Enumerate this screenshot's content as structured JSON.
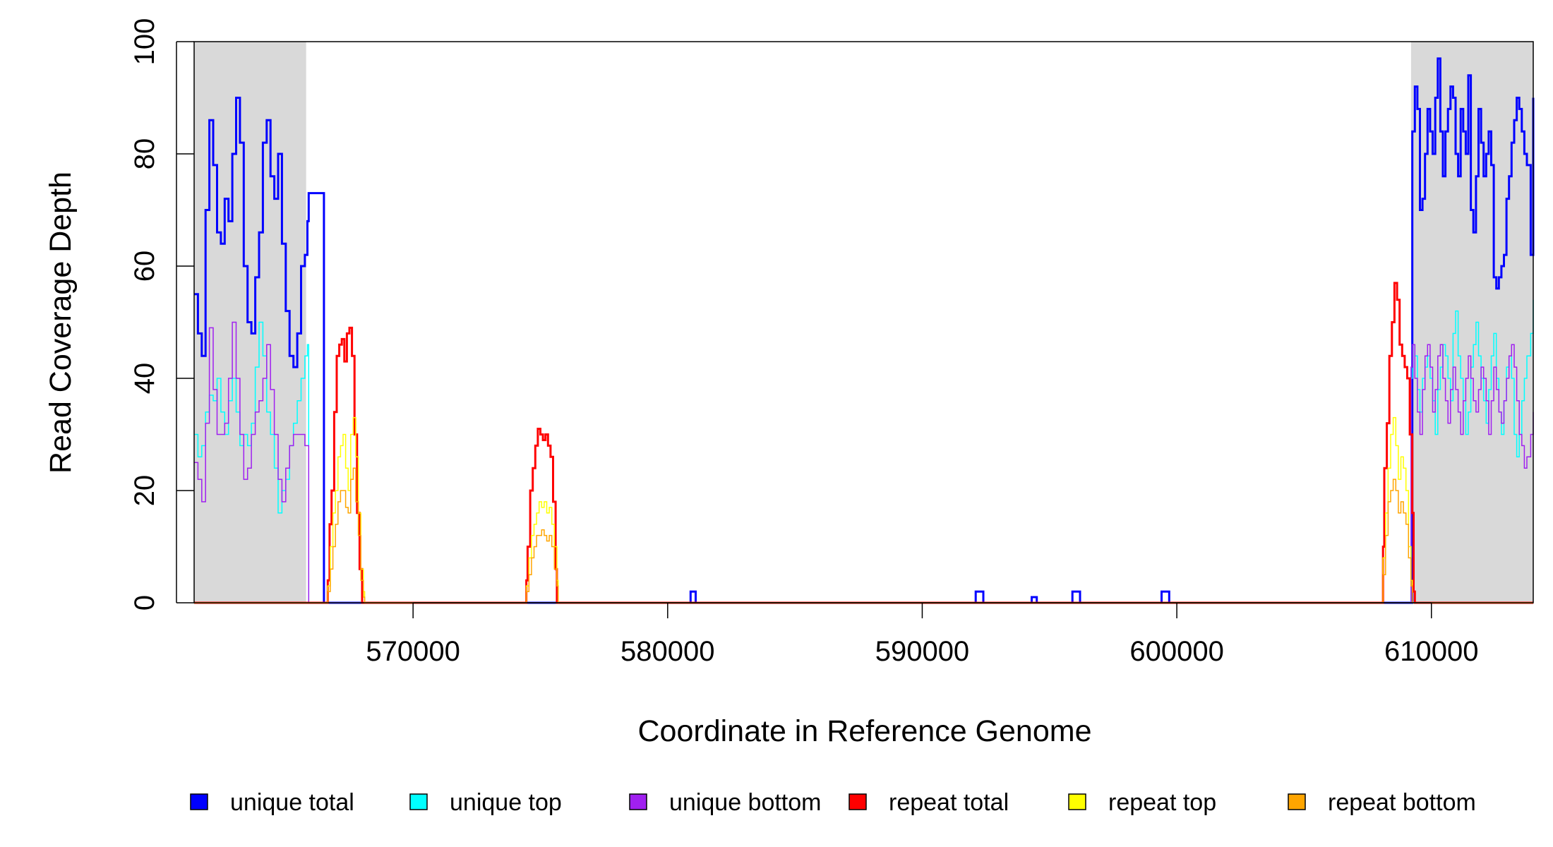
{
  "chart_data": {
    "type": "line",
    "title": "",
    "xlabel": "Coordinate in Reference Genome",
    "ylabel": "Read Coverage Depth",
    "xlim": [
      561400,
      614000
    ],
    "ylim": [
      0,
      100
    ],
    "x_ticks": [
      570000,
      580000,
      590000,
      600000,
      610000
    ],
    "x_tick_labels": [
      "570000",
      "580000",
      "590000",
      "600000",
      "610000"
    ],
    "y_ticks": [
      0,
      20,
      40,
      60,
      80,
      100
    ],
    "y_tick_labels": [
      "0",
      "20",
      "40",
      "60",
      "80",
      "100"
    ],
    "grid": false,
    "legend_position": "bottom",
    "shaded_regions": [
      {
        "x": [
          561400,
          565800
        ],
        "color": "#d9d9d9"
      },
      {
        "x": [
          609200,
          614000
        ],
        "color": "#d9d9d9"
      }
    ],
    "series": [
      {
        "name": "unique total",
        "color": "#0000ff",
        "width": 3,
        "x": [
          561400,
          561550,
          561700,
          561850,
          562000,
          562150,
          562300,
          562450,
          562600,
          562750,
          562900,
          563050,
          563200,
          563350,
          563500,
          563650,
          563800,
          563950,
          564100,
          564250,
          564400,
          564550,
          564700,
          564850,
          565000,
          565150,
          565300,
          565450,
          565600,
          565750,
          565850,
          565900,
          566500,
          567000,
          568000,
          570000,
          575000,
          580000,
          580700,
          580900,
          581000,
          581100,
          585000,
          590000,
          592000,
          592100,
          592300,
          592400,
          593000,
          594200,
          594300,
          594400,
          594500,
          595500,
          595800,
          595900,
          596100,
          596200,
          599000,
          599300,
          599400,
          599600,
          599700,
          605000,
          609000,
          609200,
          609250,
          609350,
          609450,
          609550,
          609650,
          609750,
          609850,
          609950,
          610050,
          610150,
          610250,
          610350,
          610450,
          610550,
          610650,
          610750,
          610850,
          610950,
          611050,
          611150,
          611250,
          611350,
          611450,
          611550,
          611650,
          611750,
          611850,
          611950,
          612050,
          612150,
          612250,
          612350,
          612450,
          612550,
          612650,
          612750,
          612850,
          612950,
          613050,
          613150,
          613250,
          613350,
          613450,
          613550,
          613650,
          613750,
          613900,
          614000
        ],
        "y": [
          55,
          48,
          44,
          70,
          86,
          78,
          66,
          64,
          72,
          68,
          80,
          90,
          82,
          60,
          50,
          48,
          58,
          66,
          82,
          86,
          76,
          72,
          80,
          64,
          52,
          44,
          42,
          48,
          60,
          62,
          68,
          73,
          0,
          0,
          0,
          0,
          0,
          0,
          0,
          2,
          2,
          0,
          0,
          0,
          0,
          2,
          2,
          0,
          0,
          0,
          1,
          1,
          0,
          0,
          0,
          2,
          2,
          0,
          0,
          0,
          2,
          2,
          0,
          0,
          0,
          0,
          84,
          92,
          88,
          70,
          72,
          80,
          88,
          84,
          80,
          90,
          97,
          84,
          76,
          84,
          88,
          92,
          90,
          80,
          76,
          88,
          84,
          80,
          94,
          70,
          66,
          76,
          88,
          82,
          76,
          80,
          84,
          78,
          58,
          56,
          58,
          60,
          62,
          72,
          76,
          82,
          86,
          90,
          88,
          84,
          80,
          78,
          62,
          90
        ]
      },
      {
        "name": "unique top",
        "color": "#00ffff",
        "width": 1.5,
        "x": [
          561400,
          561550,
          561700,
          561850,
          562000,
          562150,
          562300,
          562450,
          562600,
          562750,
          562900,
          563050,
          563200,
          563350,
          563500,
          563650,
          563800,
          563950,
          564100,
          564250,
          564400,
          564550,
          564700,
          564850,
          565000,
          565150,
          565300,
          565450,
          565600,
          565750,
          565850,
          565900,
          566500,
          570000,
          580000,
          590000,
          600000,
          609000,
          609200,
          609250,
          609350,
          609450,
          609550,
          609650,
          609750,
          609850,
          609950,
          610050,
          610150,
          610250,
          610350,
          610450,
          610550,
          610650,
          610750,
          610850,
          610950,
          611050,
          611150,
          611250,
          611350,
          611450,
          611550,
          611650,
          611750,
          611850,
          611950,
          612050,
          612150,
          612250,
          612350,
          612450,
          612550,
          612650,
          612750,
          612850,
          612950,
          613050,
          613150,
          613250,
          613350,
          613450,
          613550,
          613650,
          613750,
          613900,
          614000
        ],
        "y": [
          30,
          26,
          28,
          34,
          37,
          36,
          40,
          34,
          30,
          36,
          40,
          34,
          28,
          30,
          28,
          32,
          42,
          50,
          44,
          34,
          30,
          24,
          16,
          20,
          22,
          28,
          32,
          36,
          40,
          44,
          46,
          0,
          0,
          0,
          0,
          0,
          0,
          0,
          40,
          46,
          44,
          38,
          34,
          40,
          42,
          44,
          40,
          36,
          30,
          38,
          42,
          46,
          44,
          40,
          36,
          48,
          52,
          44,
          40,
          36,
          30,
          34,
          42,
          46,
          50,
          44,
          40,
          36,
          32,
          38,
          44,
          48,
          40,
          34,
          30,
          36,
          42,
          44,
          40,
          30,
          26,
          30,
          36,
          40,
          44,
          48,
          54
        ]
      },
      {
        "name": "unique bottom",
        "color": "#a020f0",
        "width": 1.5,
        "x": [
          561400,
          561550,
          561700,
          561850,
          562000,
          562150,
          562300,
          562450,
          562600,
          562750,
          562900,
          563050,
          563200,
          563350,
          563500,
          563650,
          563800,
          563950,
          564100,
          564250,
          564400,
          564550,
          564700,
          564850,
          565000,
          565150,
          565300,
          565450,
          565600,
          565750,
          565850,
          565900,
          566500,
          570000,
          580000,
          590000,
          600000,
          609000,
          609200,
          609250,
          609350,
          609450,
          609550,
          609650,
          609750,
          609850,
          609950,
          610050,
          610150,
          610250,
          610350,
          610450,
          610550,
          610650,
          610750,
          610850,
          610950,
          611050,
          611150,
          611250,
          611350,
          611450,
          611550,
          611650,
          611750,
          611850,
          611950,
          612050,
          612150,
          612250,
          612350,
          612450,
          612550,
          612650,
          612750,
          612850,
          612950,
          613050,
          613150,
          613250,
          613350,
          613450,
          613550,
          613650,
          613750,
          613900,
          614000
        ],
        "y": [
          25,
          22,
          18,
          32,
          49,
          38,
          30,
          30,
          32,
          40,
          50,
          40,
          30,
          22,
          24,
          30,
          34,
          36,
          40,
          46,
          38,
          30,
          22,
          18,
          24,
          28,
          30,
          30,
          30,
          28,
          28,
          0,
          0,
          0,
          0,
          0,
          0,
          0,
          42,
          46,
          40,
          34,
          30,
          38,
          44,
          46,
          42,
          34,
          38,
          44,
          46,
          40,
          36,
          32,
          38,
          42,
          38,
          34,
          30,
          36,
          40,
          44,
          40,
          36,
          34,
          38,
          42,
          40,
          36,
          30,
          36,
          42,
          38,
          34,
          32,
          36,
          40,
          44,
          46,
          42,
          36,
          30,
          28,
          24,
          26,
          30,
          34
        ]
      },
      {
        "name": "repeat total",
        "color": "#ff0000",
        "width": 3,
        "x": [
          561400,
          566600,
          566650,
          566720,
          566800,
          566900,
          567000,
          567100,
          567200,
          567300,
          567400,
          567500,
          567600,
          567700,
          567800,
          567900,
          568000,
          568050,
          568100,
          570000,
          574400,
          574450,
          574500,
          574600,
          574700,
          574800,
          574900,
          575000,
          575100,
          575200,
          575300,
          575400,
          575500,
          575600,
          575650,
          575700,
          580000,
          590000,
          600000,
          608050,
          608100,
          608150,
          608250,
          608350,
          608450,
          608550,
          608650,
          608750,
          608850,
          608950,
          609050,
          609150,
          609250,
          609300,
          609350,
          614000
        ],
        "y": [
          0,
          0,
          4,
          14,
          20,
          34,
          44,
          46,
          47,
          43,
          48,
          49,
          44,
          30,
          16,
          6,
          0,
          0,
          0,
          0,
          0,
          4,
          10,
          20,
          24,
          28,
          31,
          30,
          29,
          30,
          28,
          26,
          18,
          6,
          0,
          0,
          0,
          0,
          0,
          0,
          10,
          24,
          32,
          44,
          50,
          57,
          54,
          46,
          44,
          42,
          40,
          30,
          16,
          2,
          0,
          0
        ]
      },
      {
        "name": "repeat top",
        "color": "#ffff00",
        "width": 1.5,
        "x": [
          561400,
          566600,
          566650,
          566750,
          566850,
          566950,
          567050,
          567150,
          567250,
          567350,
          567450,
          567550,
          567650,
          567750,
          567850,
          567950,
          568050,
          568100,
          570000,
          574400,
          574450,
          574550,
          574650,
          574750,
          574850,
          574950,
          575050,
          575150,
          575250,
          575350,
          575450,
          575550,
          575650,
          575700,
          580000,
          590000,
          600000,
          608050,
          608100,
          608200,
          608300,
          608400,
          608500,
          608600,
          608700,
          608800,
          608900,
          609000,
          609100,
          609200,
          609250,
          609300,
          614000
        ],
        "y": [
          0,
          0,
          3,
          10,
          16,
          20,
          26,
          28,
          30,
          24,
          20,
          30,
          33,
          26,
          16,
          6,
          2,
          0,
          0,
          0,
          3,
          8,
          12,
          14,
          16,
          18,
          17,
          18,
          16,
          17,
          14,
          10,
          4,
          0,
          0,
          0,
          0,
          0,
          8,
          16,
          24,
          30,
          33,
          28,
          22,
          26,
          24,
          20,
          10,
          4,
          0,
          0,
          0
        ]
      },
      {
        "name": "repeat bottom",
        "color": "#ffa500",
        "width": 1.5,
        "x": [
          561400,
          566600,
          566650,
          566750,
          566850,
          566950,
          567050,
          567150,
          567250,
          567350,
          567450,
          567550,
          567650,
          567750,
          567850,
          567950,
          568050,
          568100,
          570000,
          574400,
          574450,
          574550,
          574650,
          574750,
          574850,
          574950,
          575050,
          575150,
          575250,
          575350,
          575450,
          575550,
          575650,
          575700,
          580000,
          590000,
          600000,
          608050,
          608100,
          608200,
          608300,
          608400,
          608500,
          608600,
          608700,
          608800,
          608900,
          609000,
          609100,
          609200,
          609250,
          609300,
          614000
        ],
        "y": [
          0,
          0,
          2,
          6,
          10,
          14,
          18,
          20,
          20,
          17,
          16,
          22,
          24,
          18,
          12,
          4,
          1,
          0,
          0,
          0,
          2,
          5,
          8,
          10,
          12,
          12,
          13,
          12,
          11,
          12,
          10,
          6,
          3,
          0,
          0,
          0,
          0,
          0,
          5,
          12,
          18,
          20,
          22,
          20,
          16,
          18,
          16,
          14,
          8,
          3,
          0,
          0,
          0
        ]
      }
    ]
  }
}
